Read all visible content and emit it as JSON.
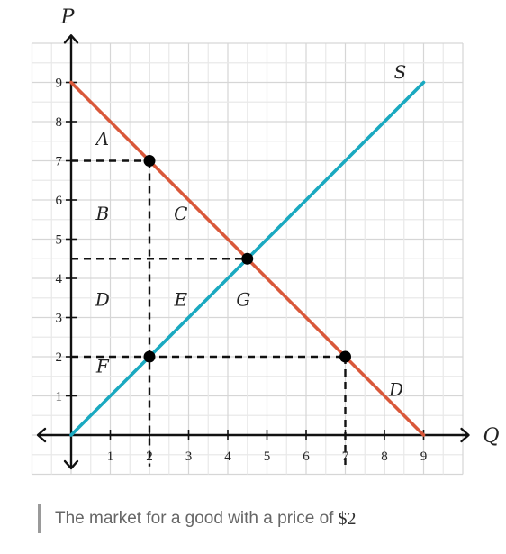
{
  "chart_data": {
    "type": "line",
    "x_axis": {
      "label": "Q",
      "range": [
        0,
        10
      ],
      "ticks": [
        1,
        2,
        3,
        4,
        5,
        6,
        7,
        8,
        9
      ]
    },
    "y_axis": {
      "label": "P",
      "range": [
        0,
        10
      ],
      "ticks": [
        1,
        2,
        3,
        4,
        5,
        6,
        7,
        8,
        9
      ]
    },
    "grid": true,
    "series": [
      {
        "name": "S",
        "color": "#1aa9c0",
        "points": [
          [
            0,
            0
          ],
          [
            9,
            9
          ]
        ]
      },
      {
        "name": "D",
        "color": "#d9583a",
        "points": [
          [
            0,
            9
          ],
          [
            9,
            0
          ]
        ]
      }
    ],
    "points": [
      {
        "x": 2,
        "y": 7
      },
      {
        "x": 4.5,
        "y": 4.5
      },
      {
        "x": 2,
        "y": 2
      },
      {
        "x": 7,
        "y": 2
      }
    ],
    "dashed_lines": [
      [
        [
          0,
          7
        ],
        [
          2,
          7
        ]
      ],
      [
        [
          2,
          7
        ],
        [
          2,
          -0.8
        ]
      ],
      [
        [
          0,
          4.5
        ],
        [
          4.5,
          4.5
        ]
      ],
      [
        [
          0,
          2
        ],
        [
          7,
          2
        ]
      ],
      [
        [
          7,
          2
        ],
        [
          7,
          -0.8
        ]
      ]
    ],
    "region_labels": [
      {
        "text": "A",
        "x": 0.8,
        "y": 7.4
      },
      {
        "text": "B",
        "x": 0.8,
        "y": 5.5
      },
      {
        "text": "C",
        "x": 2.8,
        "y": 5.5
      },
      {
        "text": "D",
        "x": 0.8,
        "y": 3.3
      },
      {
        "text": "E",
        "x": 2.8,
        "y": 3.3
      },
      {
        "text": "G",
        "x": 4.4,
        "y": 3.3
      },
      {
        "text": "F",
        "x": 0.8,
        "y": 1.6
      }
    ],
    "curve_labels": [
      {
        "text": "S",
        "x": 8.4,
        "y": 9.1
      },
      {
        "text": "D",
        "x": 8.3,
        "y": 1.0
      }
    ]
  },
  "caption": {
    "text": "The market for a good with a price of",
    "price": "$2"
  }
}
